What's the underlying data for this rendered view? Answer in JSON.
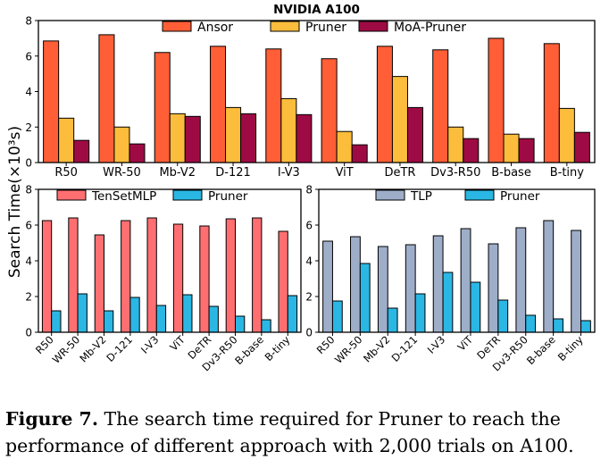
{
  "figure": {
    "ylabel": "Search Time(×10³s)",
    "caption_label": "Figure 7.",
    "caption_text": " The search time required for Pruner to reach the performance of different approach with 2,000 trials on A100."
  },
  "colors": {
    "ansor": "#ff5e36",
    "pruner_top": "#fcbd3c",
    "moa": "#9e0b44",
    "tensetmlp": "#ff6f72",
    "pruner_blue": "#2ab7e4",
    "tlp": "#9eaec9"
  },
  "chart_data": [
    {
      "type": "bar",
      "title": "NVIDIA A100",
      "categories": [
        "R50",
        "WR-50",
        "Mb-V2",
        "D-121",
        "I-V3",
        "ViT",
        "DeTR",
        "Dv3-R50",
        "B-base",
        "B-tiny"
      ],
      "ylim": [
        0,
        8
      ],
      "yticks": [
        0,
        2,
        4,
        6,
        8
      ],
      "legend": "top",
      "series": [
        {
          "name": "Ansor",
          "color": "#ff5e36",
          "values": [
            6.85,
            7.2,
            6.2,
            6.55,
            6.4,
            5.85,
            6.55,
            6.35,
            7.0,
            6.7
          ]
        },
        {
          "name": "Pruner",
          "color": "#fcbd3c",
          "values": [
            2.5,
            2.0,
            2.75,
            3.1,
            3.6,
            1.75,
            4.85,
            2.0,
            1.6,
            3.05
          ]
        },
        {
          "name": "MoA-Pruner",
          "color": "#9e0b44",
          "values": [
            1.25,
            1.05,
            2.6,
            2.75,
            2.7,
            1.0,
            3.1,
            1.35,
            1.35,
            1.7
          ]
        }
      ]
    },
    {
      "type": "bar",
      "categories": [
        "R50",
        "WR-50",
        "Mb-V2",
        "D-121",
        "I-V3",
        "ViT",
        "DeTR",
        "Dv3-R50",
        "B-base",
        "B-tiny"
      ],
      "ylim": [
        0,
        8
      ],
      "yticks": [
        0,
        2,
        4,
        6,
        8
      ],
      "legend": "top",
      "series": [
        {
          "name": "TenSetMLP",
          "color": "#ff6f72",
          "values": [
            6.25,
            6.4,
            5.45,
            6.25,
            6.4,
            6.05,
            5.95,
            6.35,
            6.4,
            5.65
          ]
        },
        {
          "name": "Pruner",
          "color": "#2ab7e4",
          "values": [
            1.2,
            2.15,
            1.2,
            1.95,
            1.5,
            2.1,
            1.45,
            0.9,
            0.7,
            2.05
          ]
        }
      ]
    },
    {
      "type": "bar",
      "categories": [
        "R50",
        "WR-50",
        "Mb-V2",
        "D-121",
        "I-V3",
        "ViT",
        "DeTR",
        "Dv3-R50",
        "B-base",
        "B-tiny"
      ],
      "ylim": [
        0,
        8
      ],
      "yticks": [
        0,
        2,
        4,
        6,
        8
      ],
      "legend": "top",
      "series": [
        {
          "name": "TLP",
          "color": "#9eaec9",
          "values": [
            5.1,
            5.35,
            4.8,
            4.9,
            5.4,
            5.8,
            4.95,
            5.85,
            6.25,
            5.7
          ]
        },
        {
          "name": "Pruner",
          "color": "#2ab7e4",
          "values": [
            1.75,
            3.85,
            1.35,
            2.15,
            3.35,
            2.8,
            1.8,
            0.95,
            0.75,
            0.65
          ]
        }
      ]
    }
  ]
}
